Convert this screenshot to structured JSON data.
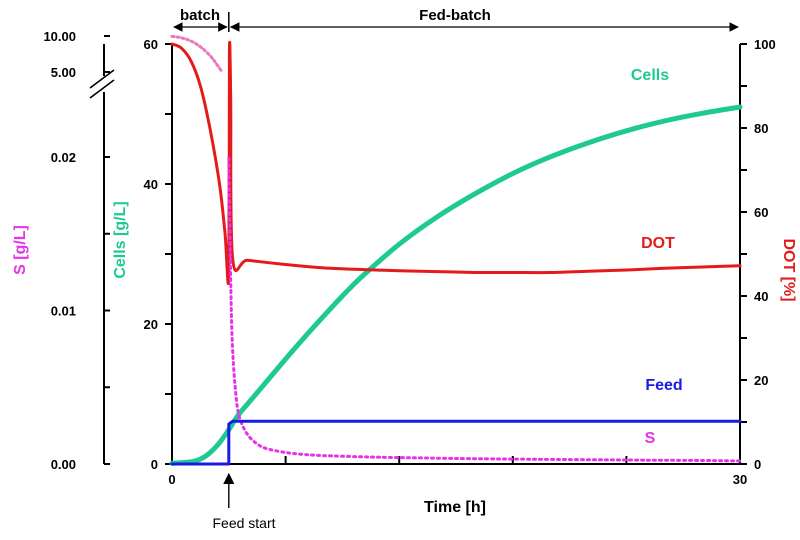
{
  "chart_data": {
    "type": "line",
    "xlabel": "Time [h]",
    "x_ticks": [
      "0",
      "30"
    ],
    "xlim": [
      0,
      30
    ],
    "phases": [
      "batch",
      "Fed-batch"
    ],
    "phase_boundary_x": 3,
    "annotation": "Feed start",
    "axes": {
      "substrate": {
        "label": "S [g/L]",
        "color": "#e832e8",
        "tick_labels": [
          "0.00",
          "0.01",
          "0.02",
          "5.00",
          "10.00"
        ]
      },
      "cells": {
        "label": "Cells [g/L]",
        "color": "#1ec994",
        "tick_labels": [
          "0",
          "20",
          "40",
          "60"
        ],
        "ylim": [
          0,
          60
        ]
      },
      "dot": {
        "label": "DOT [%]",
        "color": "#e51a1a",
        "tick_labels": [
          "0",
          "20",
          "40",
          "60",
          "80",
          "100"
        ],
        "ylim": [
          0,
          100
        ]
      }
    },
    "series": [
      {
        "name": "Cells",
        "color": "#1ec994",
        "axis": "cells",
        "x": [
          0,
          1,
          1.5,
          2,
          2.5,
          3,
          3.5,
          4,
          5,
          6,
          7,
          8,
          9,
          10,
          12,
          14,
          16,
          18,
          20,
          22,
          24,
          26,
          28,
          30
        ],
        "y": [
          0.1,
          0.3,
          0.7,
          1.6,
          3.0,
          4.9,
          7.0,
          8.6,
          11.8,
          15.0,
          18.1,
          21.1,
          24.0,
          26.7,
          31.4,
          35.3,
          38.6,
          41.5,
          43.9,
          45.9,
          47.6,
          49.0,
          50.1,
          51.0
        ]
      },
      {
        "name": "DOT",
        "color": "#e51a1a",
        "axis": "dot",
        "x": [
          0,
          0.5,
          1,
          1.5,
          2,
          2.5,
          2.8,
          3.0,
          3.03,
          3.1,
          3.2,
          4,
          6,
          8,
          10,
          12,
          14,
          16,
          18,
          20,
          22,
          24,
          26,
          28,
          30
        ],
        "y": [
          100,
          99,
          96,
          90,
          80,
          67,
          55,
          45,
          98,
          87,
          49,
          48.5,
          47.5,
          46.7,
          46.3,
          46.0,
          45.8,
          45.6,
          45.6,
          45.6,
          45.9,
          46.2,
          46.6,
          46.9,
          47.2
        ]
      },
      {
        "name": "S",
        "color": "#e832e8",
        "axis": "substrate",
        "dotted": true,
        "x": [
          3.0,
          3.1,
          3.2,
          3.4,
          3.6,
          4,
          4.5,
          5,
          6,
          7,
          8,
          10,
          12,
          15,
          18,
          20,
          22,
          25,
          28,
          30
        ],
        "y": [
          0.0199,
          0.012,
          0.0075,
          0.0042,
          0.0029,
          0.0019,
          0.0013,
          0.001,
          0.00075,
          0.00062,
          0.00055,
          0.00047,
          0.00042,
          0.00036,
          0.00032,
          0.0003,
          0.00028,
          0.00025,
          0.00023,
          0.0002
        ]
      },
      {
        "name": "Feed",
        "color": "#1a1ae5",
        "axis": "cells",
        "x": [
          0,
          3.0,
          3.0,
          3.2,
          30
        ],
        "y": [
          0,
          0,
          5.7,
          6.1,
          6.1
        ]
      }
    ],
    "batch_substrate_curve": {
      "color": "#e877c0",
      "x": [
        0,
        0.5,
        1,
        1.5,
        2,
        2.3,
        2.6
      ],
      "y": [
        9.95,
        9.75,
        9.3,
        8.5,
        7.3,
        6.3,
        5.2
      ]
    }
  }
}
